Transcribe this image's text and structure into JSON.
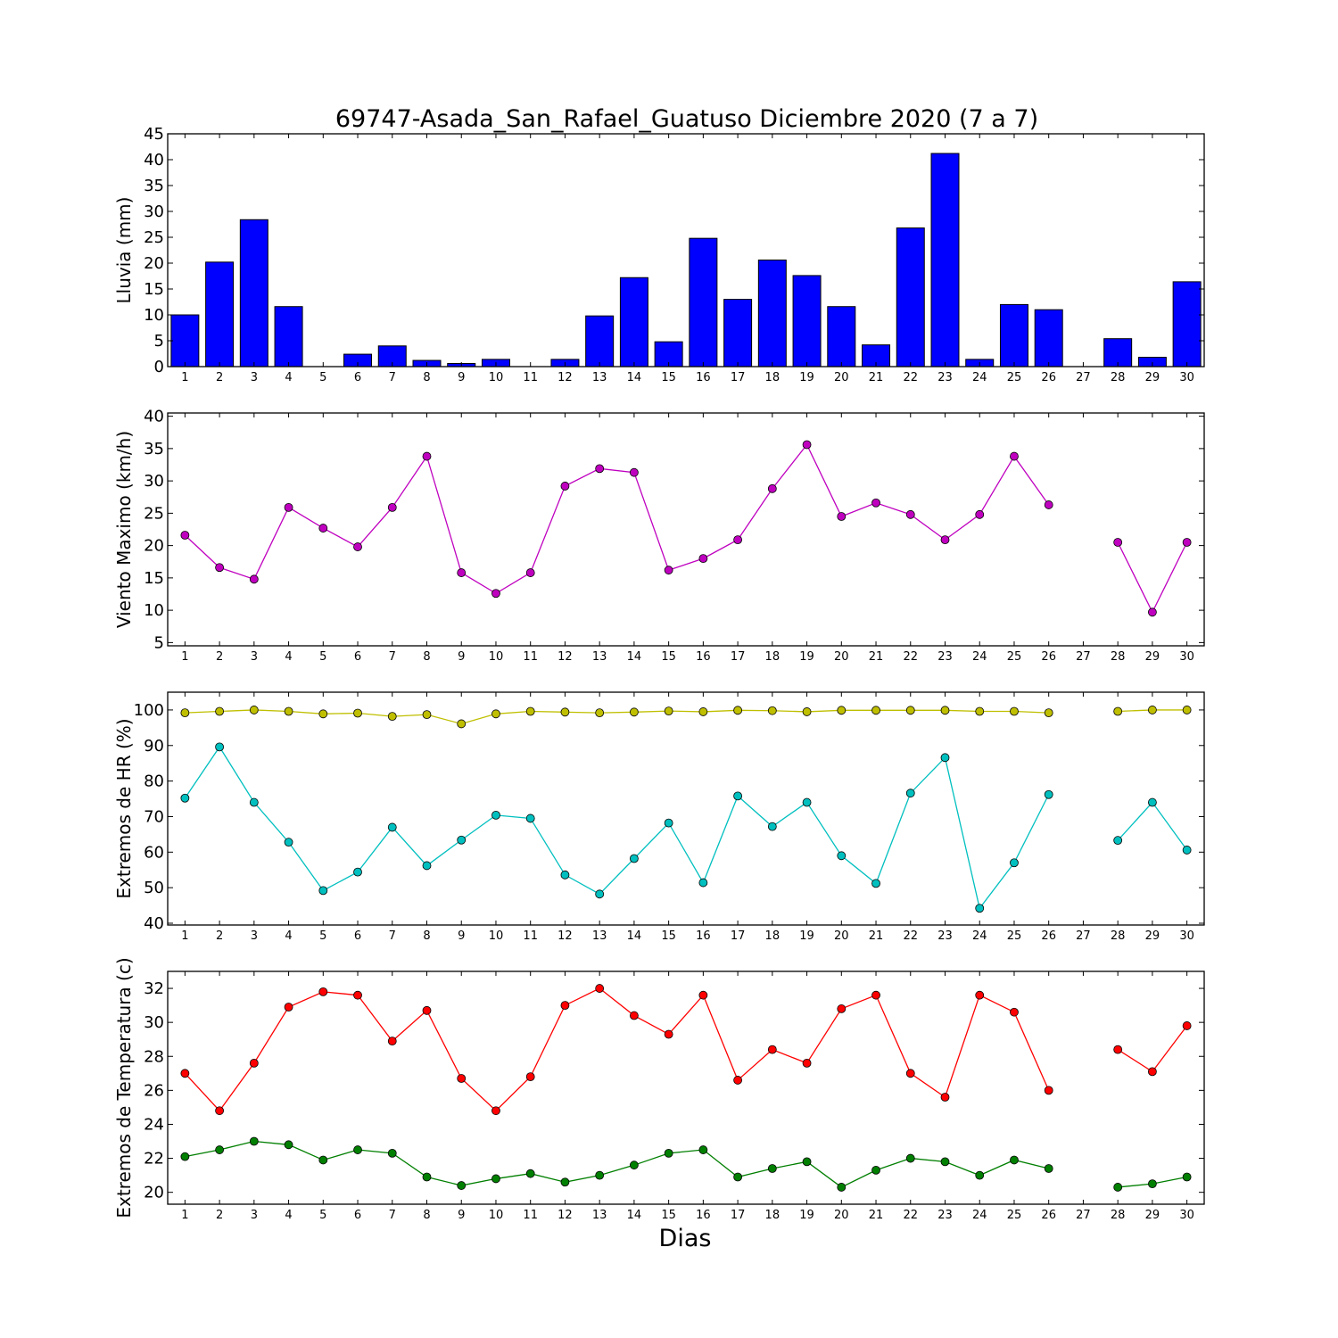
{
  "figure": {
    "title": "69747-Asada_San_Rafael_Guatuso Diciembre 2020  (7 a 7)",
    "xlabel": "Dias"
  },
  "chart_data": [
    {
      "type": "bar",
      "ylabel": "Lluvia (mm)",
      "ylim": [
        0,
        45
      ],
      "yticks": [
        0,
        5,
        10,
        15,
        20,
        25,
        30,
        35,
        40,
        45
      ],
      "categories": [
        1,
        2,
        3,
        4,
        5,
        6,
        7,
        8,
        9,
        10,
        11,
        12,
        13,
        14,
        15,
        16,
        17,
        18,
        19,
        20,
        21,
        22,
        23,
        24,
        25,
        26,
        27,
        28,
        29,
        30
      ],
      "values": [
        10.0,
        20.2,
        28.4,
        11.6,
        0.0,
        2.4,
        4.0,
        1.2,
        0.6,
        1.4,
        0.0,
        1.4,
        9.8,
        17.2,
        4.8,
        24.8,
        13.0,
        20.6,
        17.6,
        11.6,
        4.2,
        26.8,
        41.2,
        1.4,
        12.0,
        11.0,
        0.0,
        5.4,
        1.8,
        16.4
      ],
      "color": "#0000ff",
      "grid": false
    },
    {
      "type": "line",
      "ylabel": "Viento Maximo (km/h)",
      "ylim": [
        4.5,
        40.5
      ],
      "yticks": [
        5,
        10,
        15,
        20,
        25,
        30,
        35,
        40
      ],
      "categories": [
        1,
        2,
        3,
        4,
        5,
        6,
        7,
        8,
        9,
        10,
        11,
        12,
        13,
        14,
        15,
        16,
        17,
        18,
        19,
        20,
        21,
        22,
        23,
        24,
        25,
        26,
        27,
        28,
        29,
        30
      ],
      "series": [
        {
          "color": "#bf00bf",
          "values": [
            21.6,
            16.6,
            14.8,
            25.9,
            22.7,
            19.8,
            25.9,
            33.8,
            15.8,
            12.6,
            15.8,
            29.2,
            31.9,
            31.3,
            16.2,
            18.0,
            20.9,
            28.8,
            35.6,
            24.5,
            26.6,
            24.8,
            20.9,
            24.8,
            33.8,
            26.3,
            null,
            20.5,
            9.7,
            20.5
          ]
        }
      ],
      "grid": false
    },
    {
      "type": "line",
      "ylabel": "Extremos de HR (%)",
      "ylim": [
        39.5,
        105
      ],
      "yticks": [
        40,
        50,
        60,
        70,
        80,
        90,
        100
      ],
      "categories": [
        1,
        2,
        3,
        4,
        5,
        6,
        7,
        8,
        9,
        10,
        11,
        12,
        13,
        14,
        15,
        16,
        17,
        18,
        19,
        20,
        21,
        22,
        23,
        24,
        25,
        26,
        27,
        28,
        29,
        30
      ],
      "series": [
        {
          "color": "#bfbf00",
          "values": [
            99.2,
            99.6,
            100.0,
            99.6,
            98.9,
            99.1,
            98.2,
            98.7,
            96.1,
            98.9,
            99.6,
            99.4,
            99.2,
            99.4,
            99.7,
            99.5,
            99.9,
            99.8,
            99.5,
            99.9,
            99.9,
            99.9,
            99.9,
            99.6,
            99.6,
            99.2,
            null,
            99.6,
            100.0,
            100.0
          ]
        },
        {
          "color": "#00bfbf",
          "values": [
            75.2,
            89.6,
            74.0,
            62.8,
            49.2,
            54.4,
            67.0,
            56.2,
            63.4,
            70.4,
            69.5,
            53.6,
            48.2,
            58.2,
            68.2,
            51.4,
            75.8,
            67.2,
            74.0,
            59.0,
            51.2,
            76.6,
            86.6,
            44.2,
            57.0,
            76.2,
            null,
            63.3,
            74.0,
            60.6
          ]
        }
      ],
      "grid": false
    },
    {
      "type": "line",
      "ylabel": "Extremos de Temperatura (c)",
      "ylim": [
        19.3,
        33.0
      ],
      "yticks": [
        20,
        22,
        24,
        26,
        28,
        30,
        32
      ],
      "categories": [
        1,
        2,
        3,
        4,
        5,
        6,
        7,
        8,
        9,
        10,
        11,
        12,
        13,
        14,
        15,
        16,
        17,
        18,
        19,
        20,
        21,
        22,
        23,
        24,
        25,
        26,
        27,
        28,
        29,
        30
      ],
      "series": [
        {
          "color": "#ff0000",
          "values": [
            27.0,
            24.8,
            27.6,
            30.9,
            31.8,
            31.6,
            28.9,
            30.7,
            26.7,
            24.8,
            26.8,
            31.0,
            32.0,
            30.4,
            29.3,
            31.6,
            26.6,
            28.4,
            27.6,
            30.8,
            31.6,
            27.0,
            25.6,
            31.6,
            30.6,
            26.0,
            null,
            28.4,
            27.1,
            29.8
          ]
        },
        {
          "color": "#007f00",
          "values": [
            22.1,
            22.5,
            23.0,
            22.8,
            21.9,
            22.5,
            22.3,
            20.9,
            20.4,
            20.8,
            21.1,
            20.6,
            21.0,
            21.6,
            22.3,
            22.5,
            20.9,
            21.4,
            21.8,
            20.3,
            21.3,
            22.0,
            21.8,
            21.0,
            21.9,
            21.4,
            null,
            20.3,
            20.5,
            20.9
          ]
        }
      ],
      "grid": false
    }
  ]
}
